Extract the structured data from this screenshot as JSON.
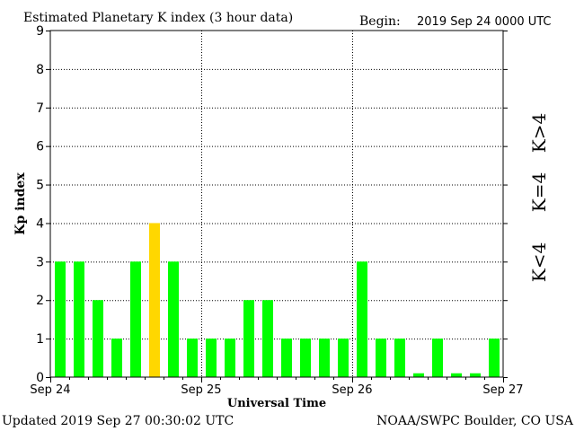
{
  "header": {
    "title": "Estimated Planetary K index (3 hour data)",
    "begin_label": "Begin:",
    "begin_value": "2019 Sep 24 0000 UTC"
  },
  "footer": {
    "updated": "Updated 2019 Sep 27 00:30:02 UTC",
    "source": "NOAA/SWPC Boulder, CO USA"
  },
  "legend": {
    "high": "K>4",
    "equal": "K=4",
    "low": "K<4"
  },
  "colors": {
    "low": "#00ff00",
    "equal": "#ffd700",
    "high": "#ff2200",
    "axis": "#000000",
    "grid": "#000000",
    "background": "#ffffff"
  },
  "chart_data": {
    "type": "bar",
    "title": "Estimated Planetary K index (3 hour data)",
    "xlabel": "Universal Time",
    "ylabel": "Kp index",
    "ylim": [
      0,
      9
    ],
    "yticks": [
      "0",
      "1",
      "2",
      "3",
      "4",
      "5",
      "6",
      "7",
      "8",
      "9"
    ],
    "xtick_labels": [
      "Sep 24",
      "Sep 25",
      "Sep 26",
      "Sep 27"
    ],
    "bin_hours": 3,
    "grid": true,
    "series": [
      {
        "values": [
          3,
          3,
          2,
          1,
          3,
          4,
          3,
          1,
          1,
          1,
          2,
          2,
          1,
          1,
          1,
          1,
          3,
          1,
          1,
          0.1,
          1,
          0.1,
          0.1,
          1
        ]
      }
    ]
  }
}
